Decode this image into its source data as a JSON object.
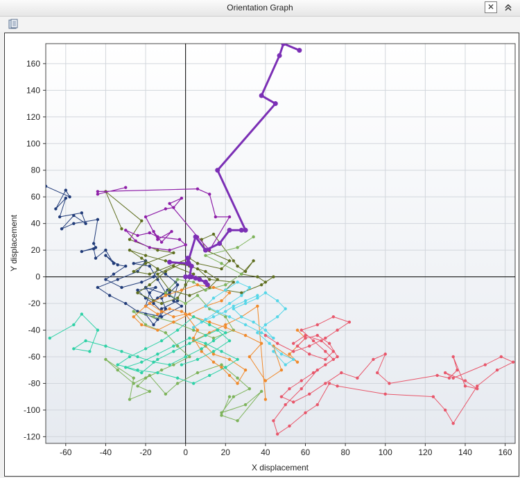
{
  "window": {
    "title": "Orientation Graph",
    "close_glyph": "✕",
    "collapse_glyph": "⌃"
  },
  "toolbar": {
    "icon": "save-report-icon"
  },
  "chart_data": {
    "type": "line",
    "xlabel": "X displacement",
    "ylabel": "Y displacement",
    "xlim": [
      -70,
      165
    ],
    "ylim": [
      -125,
      175
    ],
    "xticks": [
      -60,
      -40,
      -20,
      0,
      20,
      40,
      60,
      80,
      100,
      120,
      140,
      160
    ],
    "yticks": [
      -120,
      -100,
      -80,
      -60,
      -40,
      -20,
      0,
      20,
      40,
      60,
      80,
      100,
      120,
      140,
      160
    ],
    "grid": true,
    "legend": "none",
    "series": [
      {
        "color": "#7b2fb5",
        "width": 3,
        "x": [
          0,
          2,
          3,
          10,
          11,
          10,
          7,
          5,
          2,
          3,
          1,
          1,
          -8,
          1,
          5,
          10,
          17,
          22,
          28,
          30,
          16,
          45,
          38,
          47,
          49,
          57
        ],
        "y": [
          0,
          0,
          0,
          -4,
          -6,
          -4,
          -2,
          -1,
          0,
          8,
          14,
          10,
          11,
          10,
          30,
          20,
          25,
          35,
          35,
          35,
          80,
          130,
          136,
          166,
          175,
          170
        ]
      },
      {
        "color": "#8e1fa8",
        "width": 1.2,
        "x": [
          -30,
          -44,
          -44,
          6,
          12,
          15,
          22,
          12,
          6,
          -8,
          -2,
          -6,
          -10,
          -20,
          -14,
          -7,
          -12,
          -14,
          -3,
          0,
          -8,
          -18,
          -25,
          -30,
          -24,
          -18,
          -14,
          -16
        ],
        "y": [
          67,
          62,
          64,
          66,
          62,
          45,
          45,
          20,
          30,
          55,
          59,
          52,
          51,
          45,
          28,
          34,
          26,
          30,
          28,
          24,
          20,
          22,
          27,
          35,
          31,
          33,
          30,
          34
        ]
      },
      {
        "color": "#1f3a78",
        "width": 1,
        "x": [
          -70,
          -58,
          -60,
          -65,
          -60,
          -63,
          -52,
          -50,
          -56,
          -62,
          -56,
          -44,
          -46,
          -45,
          -52,
          -46,
          -45,
          -40,
          -36,
          -40,
          -34,
          -30,
          -36,
          -40,
          -32,
          -22,
          -16,
          -14,
          -10,
          -5,
          -9,
          -14,
          -20,
          -18,
          -15,
          -24,
          -20,
          -16,
          -12,
          -14,
          -20,
          -16,
          -10,
          -12,
          -8,
          -4,
          -6,
          -2,
          -12,
          -24,
          -30,
          -38,
          -44,
          -34,
          -24,
          -20,
          -26,
          -18,
          -14,
          -10,
          -16,
          -20,
          -8,
          -4,
          -12
        ],
        "y": [
          68,
          60,
          65,
          51,
          59,
          45,
          48,
          40,
          46,
          36,
          40,
          43,
          25,
          22,
          19,
          21,
          14,
          20,
          10,
          16,
          9,
          8,
          2,
          -2,
          -8,
          -4,
          0,
          6,
          2,
          -4,
          -10,
          -16,
          -22,
          -12,
          -8,
          -10,
          -16,
          -20,
          -26,
          -32,
          -28,
          -36,
          -24,
          -16,
          -12,
          -6,
          -18,
          -22,
          -30,
          -26,
          -20,
          -14,
          -8,
          -2,
          4,
          12,
          10,
          8,
          -2,
          -12,
          -18,
          -8,
          -14,
          -18,
          -24
        ]
      },
      {
        "color": "#5e6e1e",
        "width": 1,
        "x": [
          -32,
          -40,
          -22,
          -28,
          -14,
          -6,
          -20,
          -26,
          -18,
          2,
          6,
          18,
          22,
          10,
          8,
          14,
          24,
          26,
          30,
          34,
          28,
          36,
          40,
          44,
          38,
          28,
          20,
          24,
          12,
          6,
          -2,
          -10,
          -18,
          -24,
          -16,
          -12,
          -4,
          0,
          4,
          -6,
          -14,
          -8,
          2,
          12,
          16,
          10,
          2,
          -10,
          -20,
          -28,
          -22,
          -14
        ],
        "y": [
          36,
          64,
          42,
          28,
          20,
          18,
          10,
          4,
          2,
          14,
          10,
          6,
          12,
          20,
          28,
          32,
          12,
          8,
          4,
          12,
          2,
          0,
          -4,
          0,
          -6,
          -12,
          -10,
          -4,
          -2,
          6,
          10,
          4,
          -6,
          -12,
          -18,
          -20,
          -16,
          -6,
          2,
          8,
          2,
          -10,
          -14,
          -8,
          -2,
          4,
          8,
          12,
          16,
          20,
          14,
          6
        ]
      },
      {
        "color": "#7db35a",
        "width": 1,
        "x": [
          34,
          26,
          10,
          18,
          28,
          20,
          10,
          4,
          -4,
          -10,
          0,
          6,
          12,
          20,
          24,
          14,
          4,
          -6,
          -16,
          -26,
          -20,
          -10,
          -4,
          2,
          -6,
          -12,
          -20,
          -24,
          -18,
          -28,
          -26,
          -40,
          -34,
          -26,
          -18,
          -10,
          -4,
          6,
          18,
          26,
          32,
          24,
          18,
          30,
          38,
          26,
          18,
          22
        ],
        "y": [
          30,
          22,
          16,
          10,
          2,
          -6,
          -10,
          -4,
          -2,
          -12,
          -20,
          -14,
          -24,
          -30,
          -40,
          -46,
          -40,
          -34,
          -30,
          -26,
          -36,
          -42,
          -52,
          -60,
          -66,
          -70,
          -76,
          -82,
          -86,
          -92,
          -76,
          -62,
          -70,
          -80,
          -74,
          -88,
          -80,
          -72,
          -66,
          -76,
          -84,
          -90,
          -102,
          -96,
          -86,
          -108,
          -104,
          -90
        ]
      },
      {
        "color": "#f0892a",
        "width": 1,
        "x": [
          56,
          60,
          52,
          56,
          44,
          48,
          40,
          32,
          38,
          30,
          20,
          12,
          4,
          -2,
          -8,
          -14,
          -20,
          -26,
          -22,
          -14,
          -6,
          2,
          10,
          18,
          22,
          14,
          6,
          -2,
          -10,
          -18,
          -12,
          -6,
          0,
          6,
          4,
          8,
          14,
          18,
          22,
          26,
          30,
          22,
          14,
          10,
          4,
          12,
          20,
          28,
          36,
          40
        ],
        "y": [
          -40,
          -46,
          -58,
          -64,
          -52,
          -70,
          -78,
          -60,
          -50,
          -44,
          -38,
          -34,
          -30,
          -26,
          -24,
          -28,
          -22,
          -30,
          -36,
          -40,
          -34,
          -28,
          -22,
          -18,
          -12,
          -8,
          -6,
          -10,
          -14,
          -20,
          -26,
          -30,
          -28,
          -40,
          -46,
          -56,
          -64,
          -68,
          -74,
          -80,
          -70,
          -62,
          -58,
          -52,
          -48,
          -42,
          -36,
          -30,
          -22,
          -92
        ]
      },
      {
        "color": "#55d6e8",
        "width": 1,
        "x": [
          36,
          30,
          24,
          20,
          14,
          8,
          4,
          10,
          16,
          22,
          28,
          32,
          26,
          20,
          14,
          10,
          16,
          22,
          30,
          38,
          44,
          40,
          34,
          28,
          24,
          30,
          36,
          40,
          46,
          50,
          46,
          40,
          36,
          42,
          48,
          54,
          50,
          44
        ],
        "y": [
          -14,
          -18,
          -22,
          -26,
          -30,
          -34,
          -38,
          -32,
          -26,
          -20,
          -14,
          -8,
          -4,
          -10,
          -16,
          -22,
          -26,
          -30,
          -36,
          -42,
          -46,
          -40,
          -34,
          -30,
          -24,
          -20,
          -16,
          -12,
          -18,
          -24,
          -30,
          -36,
          -42,
          -50,
          -58,
          -62,
          -66,
          -56
        ]
      },
      {
        "color": "#2ed1a6",
        "width": 1,
        "x": [
          -68,
          -56,
          -52,
          -44,
          -48,
          -56,
          -50,
          -40,
          -32,
          -24,
          -16,
          -8,
          0,
          8,
          14,
          20,
          12,
          4,
          -4,
          -12,
          -20,
          -28,
          -34,
          -24,
          -14,
          -4,
          4,
          12,
          20,
          26,
          18,
          10,
          2,
          -6,
          -14,
          -22,
          -30,
          -22,
          -14,
          -6,
          2,
          10,
          16,
          22,
          14,
          6,
          -2
        ],
        "y": [
          -46,
          -36,
          -28,
          -40,
          -56,
          -54,
          -48,
          -52,
          -56,
          -60,
          -64,
          -66,
          -60,
          -54,
          -48,
          -42,
          -36,
          -30,
          -40,
          -48,
          -54,
          -60,
          -66,
          -70,
          -72,
          -76,
          -80,
          -74,
          -68,
          -62,
          -56,
          -50,
          -46,
          -52,
          -58,
          -64,
          -68,
          -72,
          -62,
          -56,
          -50,
          -44,
          -40,
          -48,
          -56,
          -62,
          -66
        ]
      },
      {
        "color": "#e8566a",
        "width": 1,
        "x": [
          54,
          60,
          68,
          74,
          70,
          62,
          56,
          60,
          66,
          72,
          76,
          70,
          64,
          58,
          52,
          48,
          54,
          62,
          70,
          78,
          86,
          94,
          100,
          96,
          102,
          126,
          132,
          136,
          134,
          140,
          146,
          140,
          130,
          134,
          150,
          158,
          164,
          156,
          146,
          134,
          130,
          124,
          100,
          76,
          72,
          66,
          60,
          52,
          46,
          44,
          50,
          58,
          66,
          74,
          70,
          64,
          58,
          66,
          74,
          82,
          76,
          70,
          62,
          54,
          46,
          40
        ],
        "y": [
          -50,
          -44,
          -48,
          -56,
          -62,
          -58,
          -52,
          -46,
          -44,
          -50,
          -60,
          -66,
          -72,
          -78,
          -84,
          -90,
          -94,
          -88,
          -80,
          -72,
          -76,
          -62,
          -58,
          -72,
          -80,
          -74,
          -76,
          -70,
          -60,
          -82,
          -84,
          -78,
          -72,
          -76,
          -66,
          -60,
          -64,
          -70,
          -82,
          -110,
          -100,
          -90,
          -88,
          -82,
          -80,
          -96,
          -102,
          -112,
          -118,
          -108,
          -96,
          -84,
          -70,
          -62,
          -56,
          -48,
          -40,
          -36,
          -30,
          -34,
          -40,
          -46,
          -52,
          -56,
          -50,
          -44
        ]
      }
    ]
  }
}
